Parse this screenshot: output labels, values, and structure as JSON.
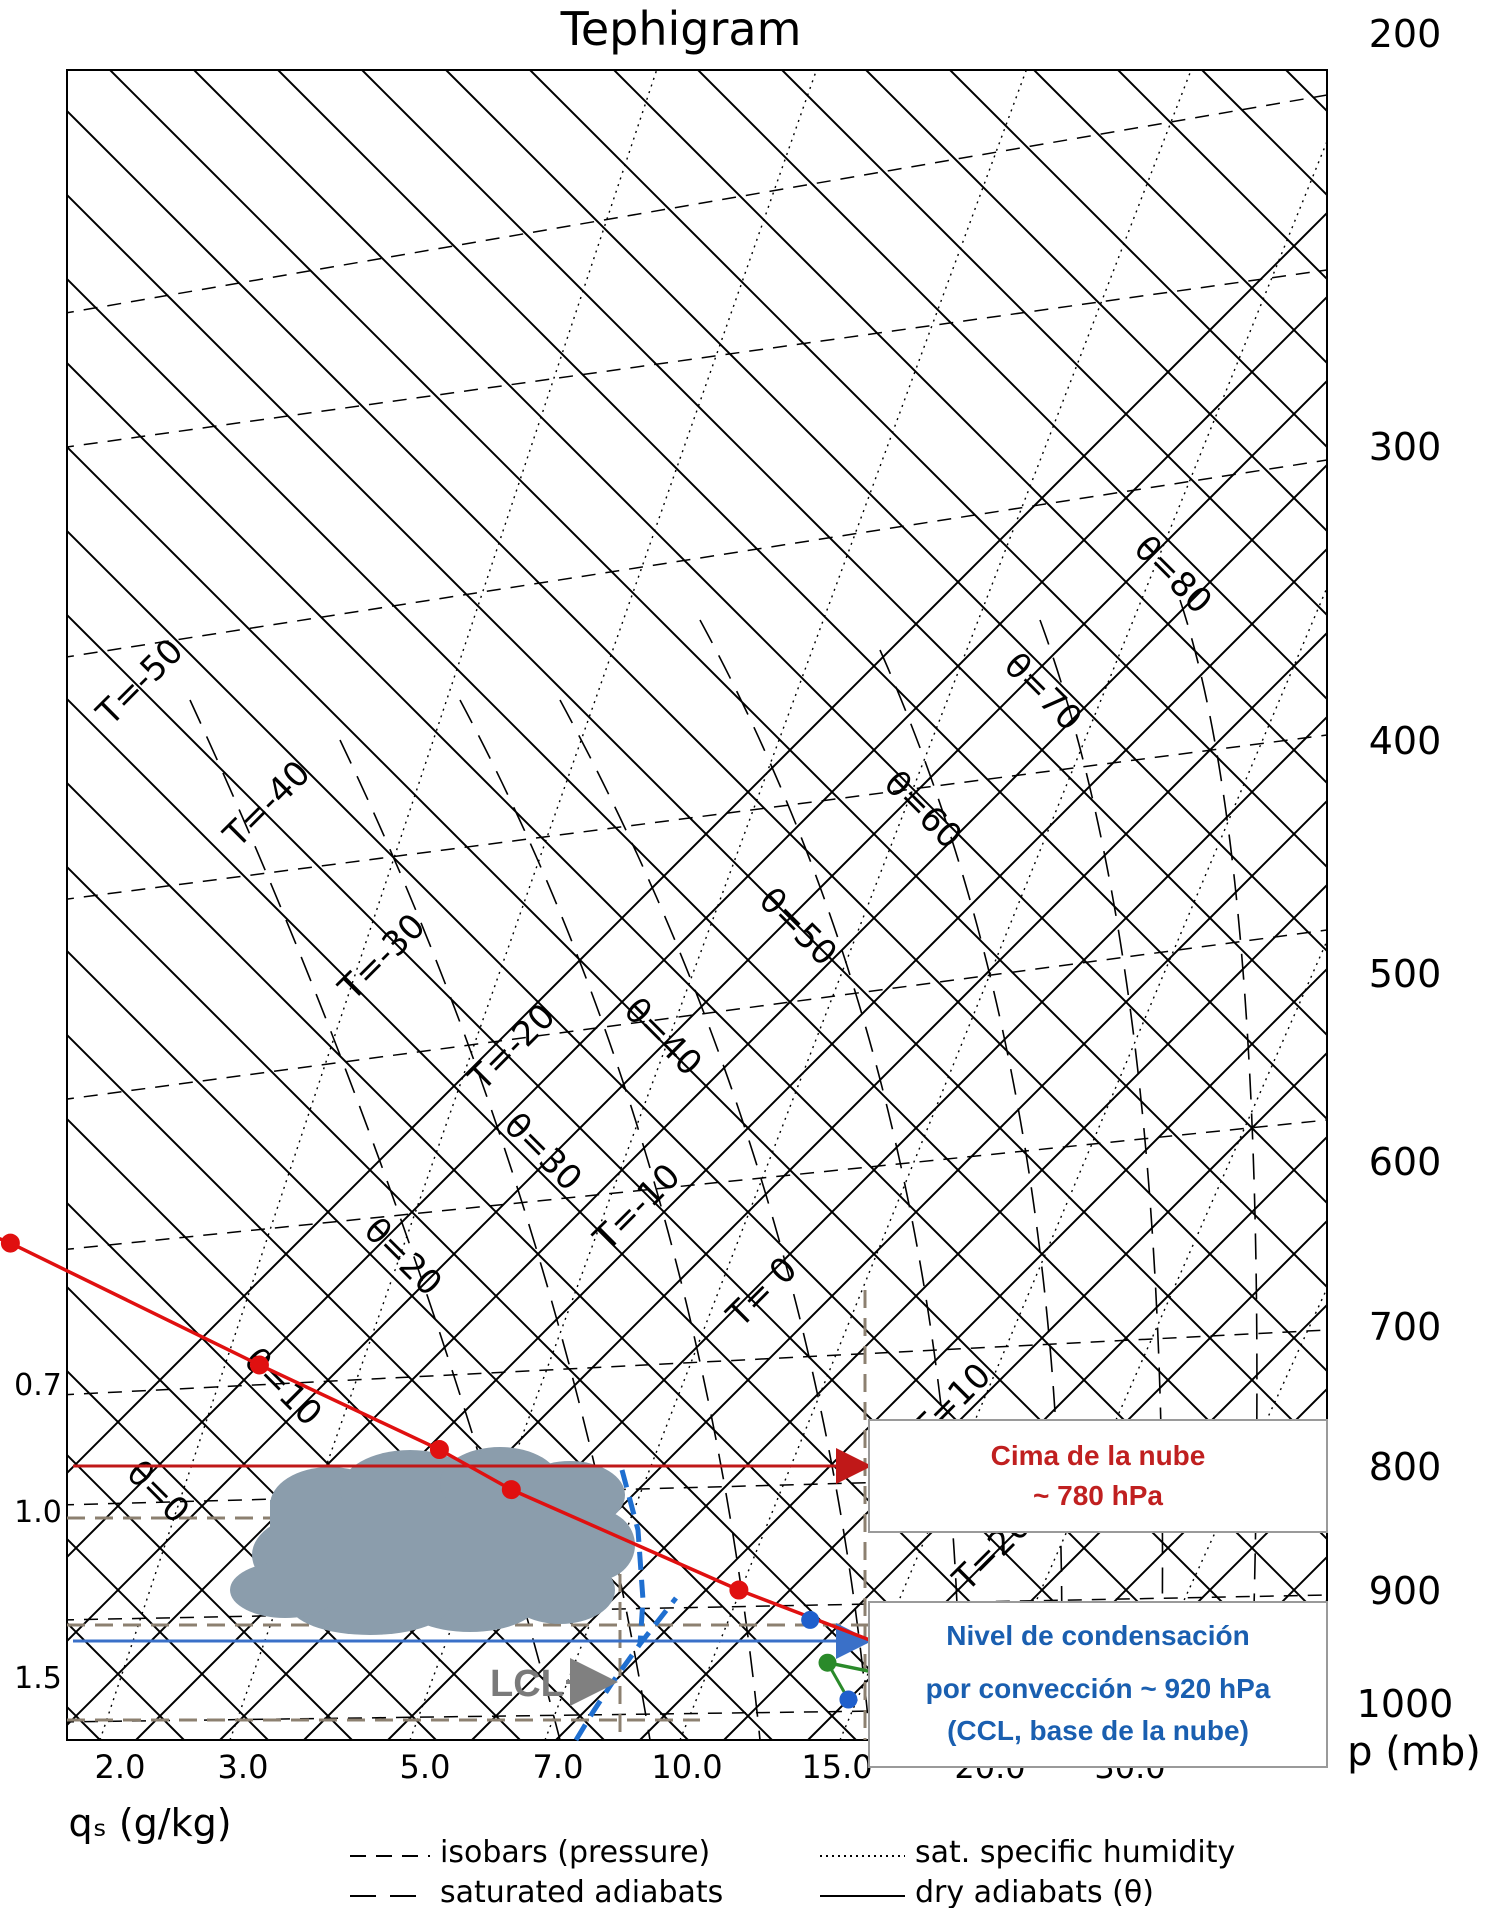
{
  "chart_data": {
    "type": "line",
    "title": "Tephigram",
    "pressure_axis_label": "p (mb)",
    "pressure_ticks": [
      "200",
      "300",
      "400",
      "500",
      "600",
      "700",
      "800",
      "900",
      "1000"
    ],
    "qs_axis_label": "qₛ (g/kg)",
    "qs_ticks": [
      "2.0",
      "3.0",
      "5.0",
      "7.0",
      "10.0",
      "15.0",
      "20.0",
      "30.0"
    ],
    "left_qs_ticks": [
      "0.7",
      "1.0",
      "1.5"
    ],
    "isotherm_labels": [
      "T=-50",
      "T=-40",
      "T=-30",
      "T=-20",
      "T=-10",
      "T= 0",
      "T=10",
      "T=20"
    ],
    "theta_labels": [
      "θ=80",
      "θ=70",
      "θ=60",
      "θ=50",
      "θ=40",
      "θ=30",
      "θ=20",
      "θ=10",
      "θ=0"
    ],
    "legend": {
      "isobars": "isobars (pressure)",
      "sat_humidity": "sat. specific humidity",
      "sat_adiabats": "saturated adiabats",
      "dry_adiabats": "dry adiabats (θ)"
    },
    "series": [
      {
        "name": "",
        "color": "#e01010",
        "points": [
          {
            "p": 200,
            "T": -56.5
          },
          {
            "p": 250,
            "T": -52.5
          },
          {
            "p": 350,
            "T": -44.5
          },
          {
            "p": 450,
            "T": -24.5
          },
          {
            "p": 550,
            "T": -9.5
          },
          {
            "p": 650,
            "T": -1.5
          },
          {
            "p": 730,
            "T": 2.5
          },
          {
            "p": 790,
            "T": 5.5
          },
          {
            "p": 820,
            "T": 6.5
          },
          {
            "p": 900,
            "T": 10.5
          },
          {
            "p": 950,
            "T": 13.5
          },
          {
            "p": 995,
            "T": 15.5
          }
        ]
      },
      {
        "name": "",
        "color": "#2a8a2a",
        "points": [
          {
            "p": 995,
            "T": 15.5
          },
          {
            "p": 962,
            "T": 11
          }
        ]
      }
    ],
    "annotations": {
      "lcl_label": "LCL",
      "cloud_top_line1": "Cima de la nube",
      "cloud_top_line2": "~ 780 hPa",
      "ccl_line1": "Nivel de condensación",
      "ccl_line2": "por convección ~ 920 hPa",
      "ccl_line3": "(CCL, base de la nube)"
    },
    "colors": {
      "sounding": "#e01010",
      "points_blue": "#1f5fcc",
      "dewpoint_green": "#2a8a2a",
      "cloud_top_arrow": "#c01818",
      "ccl_arrow": "#3a70c8",
      "cloud": "#8899a8",
      "ccl_text": "#1a5fb0",
      "cloud_top_text": "#c02020",
      "lcl_text": "#7a7a7a",
      "moist_parcel_dash": "#1f6fd0"
    }
  }
}
